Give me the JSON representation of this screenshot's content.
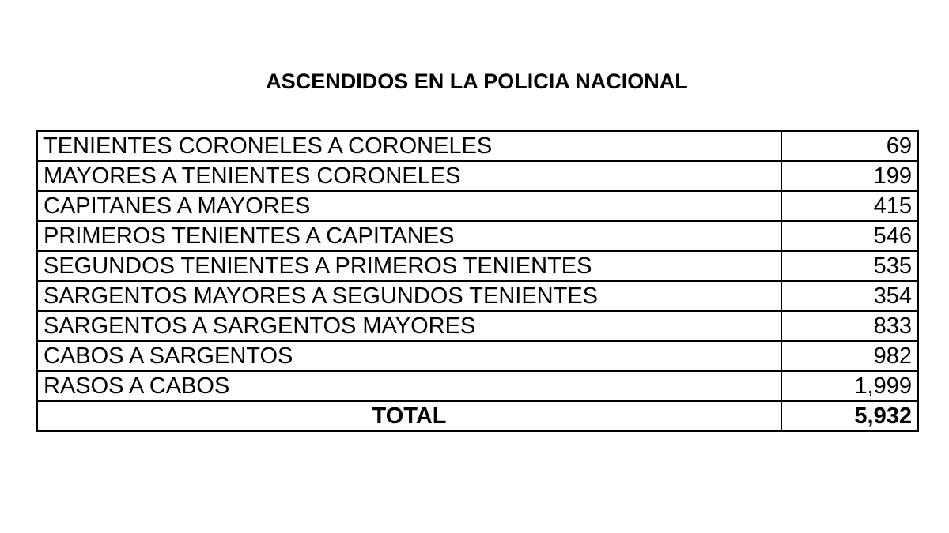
{
  "document": {
    "title": "ASCENDIDOS EN LA POLICIA NACIONAL",
    "rows": [
      {
        "label": "TENIENTES CORONELES A CORONELES",
        "value": "69"
      },
      {
        "label": "MAYORES A TENIENTES CORONELES",
        "value": "199"
      },
      {
        "label": "CAPITANES A MAYORES",
        "value": "415"
      },
      {
        "label": "PRIMEROS TENIENTES A CAPITANES",
        "value": "546"
      },
      {
        "label": "SEGUNDOS TENIENTES A PRIMEROS TENIENTES",
        "value": "535"
      },
      {
        "label": "SARGENTOS MAYORES A SEGUNDOS TENIENTES",
        "value": "354"
      },
      {
        "label": "SARGENTOS A SARGENTOS MAYORES",
        "value": "833"
      },
      {
        "label": "CABOS A SARGENTOS",
        "value": "982"
      },
      {
        "label": "RASOS A CABOS",
        "value": "1,999"
      }
    ],
    "total": {
      "label": "TOTAL",
      "value": "5,932"
    }
  }
}
